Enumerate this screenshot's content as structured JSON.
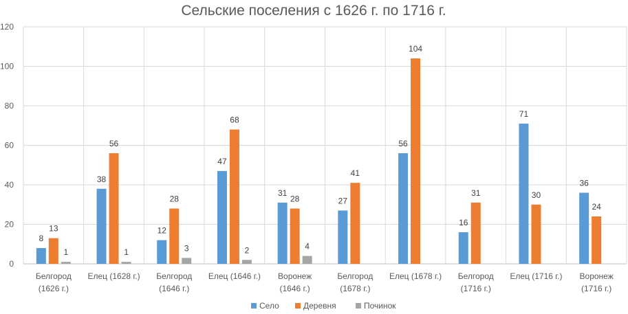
{
  "chart_data": {
    "type": "bar",
    "title": "Сельские поселения с 1626 г. по 1716 г.",
    "xlabel": "",
    "ylabel": "",
    "ylim": [
      0,
      120
    ],
    "yticks": [
      0,
      20,
      40,
      60,
      80,
      100,
      120
    ],
    "grid": true,
    "legend_position": "bottom",
    "categories": [
      [
        "Белгород",
        "(1626 г.)"
      ],
      [
        "Елец (1628 г.)"
      ],
      [
        "Белгород",
        "(1646 г.)"
      ],
      [
        "Елец (1646 г.)"
      ],
      [
        "Воронеж",
        "(1646 г.)"
      ],
      [
        "Белгород",
        "(1678 г.)"
      ],
      [
        "Елец (1678 г.)"
      ],
      [
        "Белгород",
        "(1716 г.)"
      ],
      [
        "Елец (1716 г.)"
      ],
      [
        "Воронеж",
        "(1716 г.)"
      ]
    ],
    "series": [
      {
        "name": "Село",
        "color": "#5B9BD5",
        "values": [
          8,
          38,
          12,
          47,
          31,
          27,
          56,
          16,
          71,
          36
        ]
      },
      {
        "name": "Деревня",
        "color": "#ED7D31",
        "values": [
          13,
          56,
          28,
          68,
          28,
          41,
          104,
          31,
          30,
          24
        ]
      },
      {
        "name": "Починок",
        "color": "#A5A5A5",
        "values": [
          1,
          1,
          3,
          2,
          4,
          null,
          null,
          null,
          null,
          null
        ]
      }
    ]
  }
}
